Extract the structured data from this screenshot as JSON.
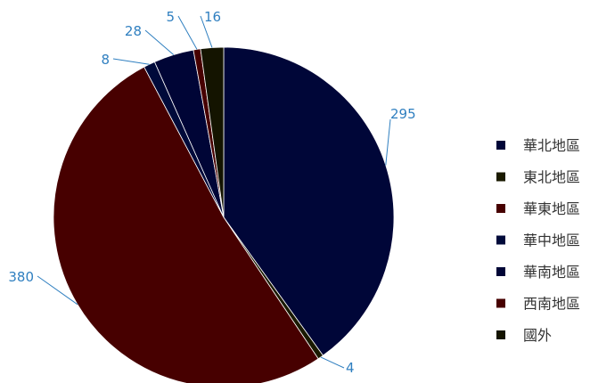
{
  "chart_data": {
    "type": "pie",
    "title": "",
    "legend_position": "right",
    "labels": [
      "華北地區",
      "東北地區",
      "華東地區",
      "華中地區",
      "華南地區",
      "西南地區",
      "國外"
    ],
    "values": [
      295,
      4,
      380,
      8,
      28,
      5,
      16
    ],
    "colors": [
      "#000638",
      "#1a1a00",
      "#470000",
      "#000a3a",
      "#000536",
      "#470000",
      "#141400"
    ]
  }
}
